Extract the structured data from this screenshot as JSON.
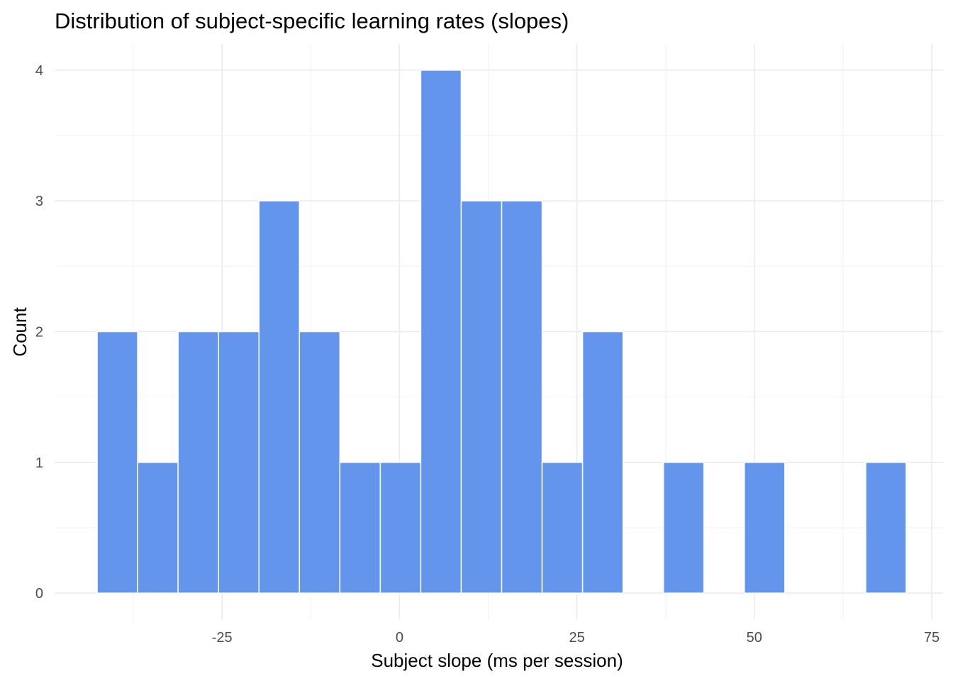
{
  "chart_data": {
    "type": "bar",
    "subtype": "histogram",
    "title": "Distribution of subject-specific learning rates (slopes)",
    "xlabel": "Subject slope (ms per session)",
    "ylabel": "Count",
    "xlim": [
      -48.6,
      76.6
    ],
    "ylim": [
      -0.2,
      4.2
    ],
    "bin_width": 5.7,
    "x_ticks": [
      -25,
      0,
      25,
      50,
      75
    ],
    "x_tick_labels": [
      "-25",
      "0",
      "25",
      "50",
      "75"
    ],
    "y_ticks": [
      0,
      1,
      2,
      3,
      4
    ],
    "y_tick_labels": [
      "0",
      "1",
      "2",
      "3",
      "4"
    ],
    "bins": [
      {
        "x0": -42.6,
        "x1": -36.9,
        "count": 2
      },
      {
        "x0": -36.9,
        "x1": -31.2,
        "count": 1
      },
      {
        "x0": -31.2,
        "x1": -25.5,
        "count": 2
      },
      {
        "x0": -25.5,
        "x1": -19.8,
        "count": 2
      },
      {
        "x0": -19.8,
        "x1": -14.1,
        "count": 3
      },
      {
        "x0": -14.1,
        "x1": -8.4,
        "count": 2
      },
      {
        "x0": -8.4,
        "x1": -2.7,
        "count": 1
      },
      {
        "x0": -2.7,
        "x1": 3.0,
        "count": 1
      },
      {
        "x0": 3.0,
        "x1": 8.7,
        "count": 4
      },
      {
        "x0": 8.7,
        "x1": 14.4,
        "count": 3
      },
      {
        "x0": 14.4,
        "x1": 20.1,
        "count": 3
      },
      {
        "x0": 20.1,
        "x1": 25.8,
        "count": 1
      },
      {
        "x0": 25.8,
        "x1": 31.5,
        "count": 2
      },
      {
        "x0": 31.5,
        "x1": 37.2,
        "count": 0
      },
      {
        "x0": 37.2,
        "x1": 42.9,
        "count": 1
      },
      {
        "x0": 42.9,
        "x1": 48.6,
        "count": 0
      },
      {
        "x0": 48.6,
        "x1": 54.3,
        "count": 1
      },
      {
        "x0": 54.3,
        "x1": 60.0,
        "count": 0
      },
      {
        "x0": 60.0,
        "x1": 65.7,
        "count": 0
      },
      {
        "x0": 65.7,
        "x1": 71.4,
        "count": 1
      }
    ],
    "bar_color": "#6495ED",
    "grid": true,
    "legend": "none"
  }
}
